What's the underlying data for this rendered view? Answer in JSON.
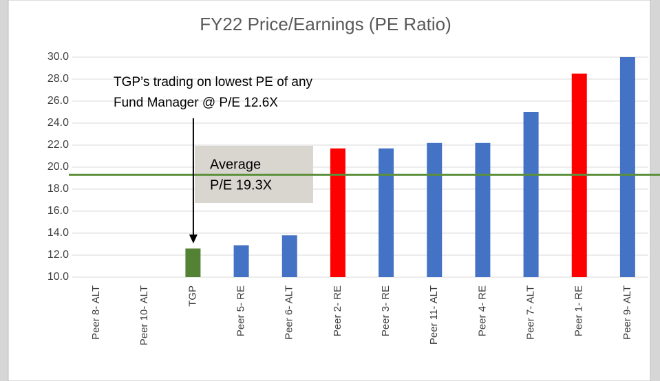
{
  "chart_data": {
    "type": "bar",
    "title": "FY22 Price/Earnings (PE Ratio)",
    "categories": [
      "Peer 8- ALT",
      "Peer 10- ALT",
      "TGP",
      "Peer 5- RE",
      "Peer 6- ALT",
      "Peer 2- RE",
      "Peer 3- RE",
      "Peer 11- ALT",
      "Peer 4- RE",
      "Peer 7- ALT",
      "Peer 1- RE",
      "Peer 9- ALT"
    ],
    "values": [
      null,
      null,
      12.6,
      12.9,
      13.8,
      21.7,
      21.7,
      22.2,
      22.2,
      25.0,
      28.5,
      30.0
    ],
    "colors": [
      "#4472c4",
      "#4472c4",
      "#548235",
      "#4472c4",
      "#4472c4",
      "#ff0000",
      "#4472c4",
      "#4472c4",
      "#4472c4",
      "#4472c4",
      "#ff0000",
      "#4472c4"
    ],
    "ylim": [
      10,
      30
    ],
    "yticks": [
      {
        "value": 10,
        "label": "10.0"
      },
      {
        "value": 12,
        "label": "12.0"
      },
      {
        "value": 14,
        "label": "14.0"
      },
      {
        "value": 16,
        "label": "16.0"
      },
      {
        "value": 18,
        "label": "18.0"
      },
      {
        "value": 20,
        "label": "20.0"
      },
      {
        "value": 22,
        "label": "22.0"
      },
      {
        "value": 24,
        "label": "24.0"
      },
      {
        "value": 26,
        "label": "26.0"
      },
      {
        "value": 28,
        "label": "28.0"
      },
      {
        "value": 30,
        "label": "30.0"
      }
    ],
    "grid": true,
    "average": {
      "value": 19.3,
      "color": "#5b8f3a",
      "label_lines": [
        "Average",
        "P/E 19.3X"
      ]
    },
    "annotation": {
      "lines": [
        "TGP’s trading on lowest PE of any",
        "Fund Manager @ P/E 12.6X"
      ],
      "target": 2
    }
  }
}
